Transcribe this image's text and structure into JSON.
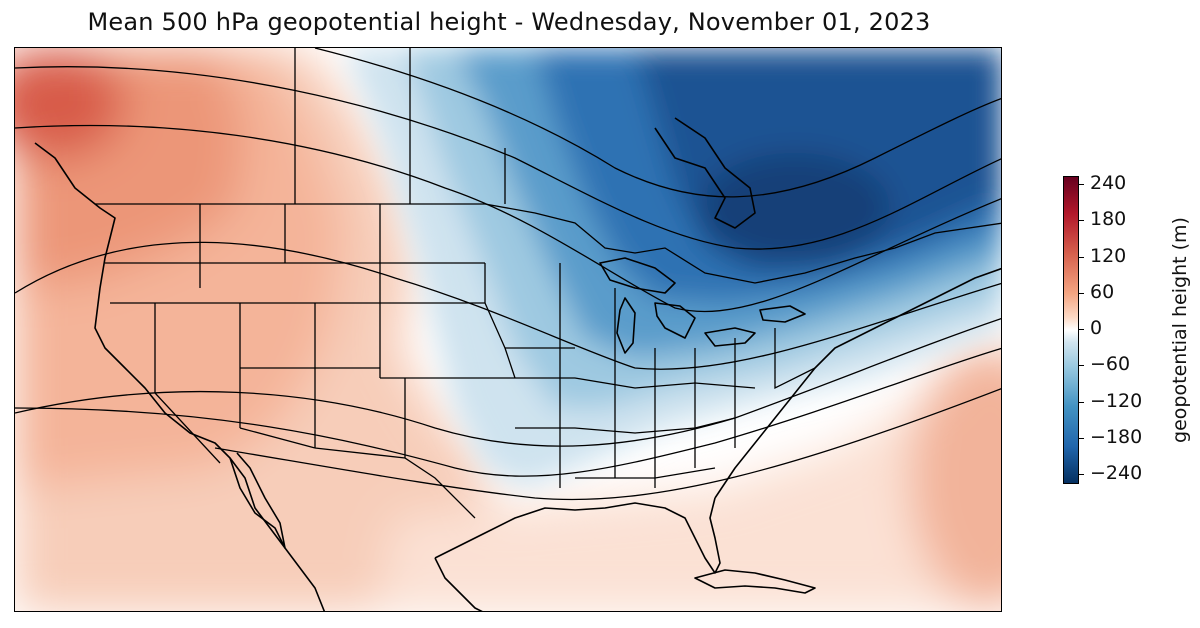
{
  "title": "Mean 500 hPa geopotential height - Wednesday, November 01, 2023",
  "colorbar": {
    "label": "geopotential height (m)",
    "ticks": [
      "240",
      "180",
      "120",
      "60",
      "0",
      "−60",
      "−120",
      "−180",
      "−240"
    ],
    "range": [
      -240,
      240
    ],
    "colormap": [
      "#67001f",
      "#b2182b",
      "#d6604d",
      "#f4a582",
      "#fddbc7",
      "#ffffff",
      "#d1e5f0",
      "#92c5de",
      "#4393c3",
      "#2166ac",
      "#053061"
    ]
  },
  "map": {
    "region": "Contiguous United States, southern Canada, northern Mexico",
    "field": "500 hPa geopotential height anomaly",
    "features": {
      "trough_center": "northern Great Lakes / Ontario",
      "ridge_west": "Pacific Northwest / British Columbia",
      "ridge_east": "western Atlantic"
    },
    "colors": {
      "positive": "#e8957a",
      "negative": "#1f5d9e",
      "neutral": "#ffffff",
      "contour": "#000000"
    }
  }
}
